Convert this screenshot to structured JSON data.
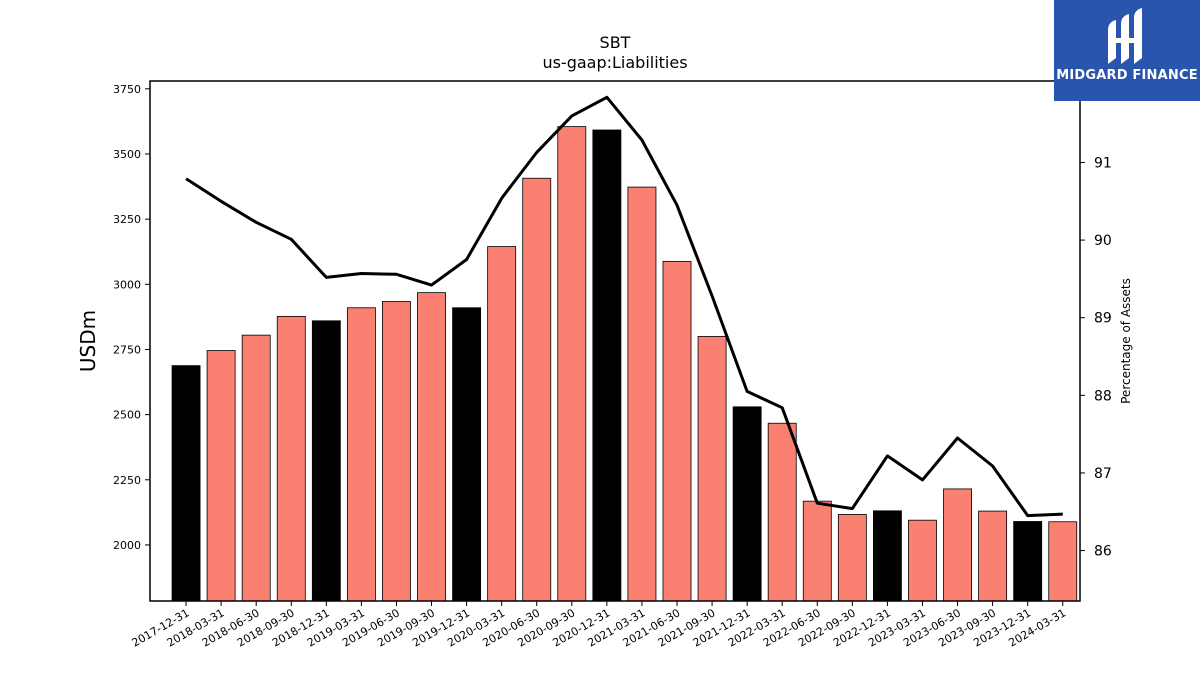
{
  "chart_data": {
    "type": "bar",
    "title": "SBT",
    "subtitle": "us-gaap:Liabilities",
    "ylabel": "USDm",
    "y2label": "Percentage of Assets",
    "ylim": [
      1785,
      3780
    ],
    "y2lim": [
      85.35,
      92.05
    ],
    "yticks": [
      2000,
      2250,
      2500,
      2750,
      3000,
      3250,
      3500,
      3750
    ],
    "y2ticks": [
      86,
      87,
      88,
      89,
      90,
      91
    ],
    "categories": [
      "2017-12-31",
      "2018-03-31",
      "2018-06-30",
      "2018-09-30",
      "2018-12-31",
      "2019-03-31",
      "2019-06-30",
      "2019-09-30",
      "2019-12-31",
      "2020-03-31",
      "2020-06-30",
      "2020-09-30",
      "2020-12-31",
      "2021-03-31",
      "2021-06-30",
      "2021-09-30",
      "2021-12-31",
      "2022-03-31",
      "2022-06-30",
      "2022-09-30",
      "2022-12-31",
      "2023-03-31",
      "2023-06-30",
      "2023-09-30",
      "2023-12-31",
      "2024-03-31"
    ],
    "series": [
      {
        "type": "bar",
        "values": [
          2688,
          2746,
          2805,
          2877,
          2860,
          2910,
          2934,
          2968,
          2910,
          3145,
          3407,
          3605,
          3592,
          3373,
          3088,
          2800,
          2530,
          2467,
          2168,
          2117,
          2131,
          2095,
          2215,
          2130,
          2090,
          2089
        ],
        "colors": [
          "#000000",
          "#fa8072",
          "#fa8072",
          "#fa8072",
          "#000000",
          "#fa8072",
          "#fa8072",
          "#fa8072",
          "#000000",
          "#fa8072",
          "#fa8072",
          "#fa8072",
          "#000000",
          "#fa8072",
          "#fa8072",
          "#fa8072",
          "#000000",
          "#fa8072",
          "#fa8072",
          "#fa8072",
          "#000000",
          "#fa8072",
          "#fa8072",
          "#fa8072",
          "#000000",
          "#fa8072"
        ]
      },
      {
        "type": "line",
        "axis": "right",
        "color": "#000000",
        "values": [
          90.79,
          90.5,
          90.23,
          90.01,
          89.52,
          89.57,
          89.56,
          89.42,
          89.75,
          90.54,
          91.13,
          91.6,
          91.84,
          91.29,
          90.45,
          89.28,
          88.05,
          87.84,
          86.61,
          86.54,
          87.22,
          86.91,
          87.45,
          87.09,
          86.45,
          86.47
        ]
      }
    ],
    "grid": false,
    "legend": "none"
  },
  "logo": {
    "text": "MIDGARD FINANCE",
    "icon": "midgard-logo-icon",
    "bg": "#2a55ad"
  }
}
